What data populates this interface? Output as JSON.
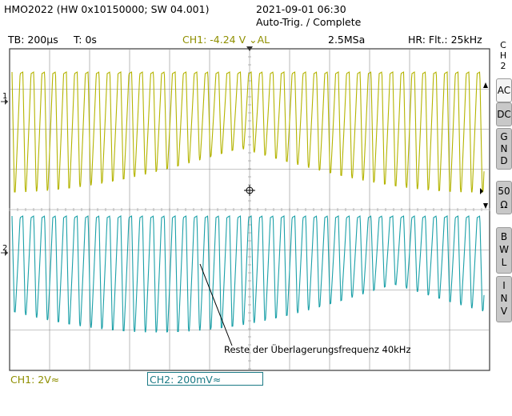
{
  "header": {
    "device": "HMO2022 (HW 0x10150000; SW 04.001)",
    "datetime": "2021-09-01 06:30",
    "trigger_status": "Auto-Trig. / Complete"
  },
  "status_bar": {
    "timebase": "TB: 200µs",
    "trigger_time": "T: 0s",
    "trigger_level": "CH1: -4.24 V ⌄AL",
    "sample_rate": "2.5MSa",
    "filter": "HR: Flt.: 25kHz"
  },
  "side_menu": {
    "channel": [
      "C",
      "H",
      "2"
    ],
    "buttons": [
      {
        "label": [
          "AC"
        ],
        "active": true
      },
      {
        "label": [
          "DC"
        ],
        "active": false
      },
      {
        "label": [
          "G",
          "N",
          "D"
        ],
        "active": false
      },
      {
        "label": [
          "50",
          "Ω"
        ],
        "active": false
      },
      {
        "label": [
          "B",
          "W",
          "L"
        ],
        "active": false
      },
      {
        "label": [
          "I",
          "N",
          "V"
        ],
        "active": false
      }
    ]
  },
  "markers": {
    "ch1": "1",
    "ch2": "2"
  },
  "annotation": "Reste der Überlagerungsfrequenz 40kHz",
  "footer": {
    "ch1_scale": "CH1: 2V≈",
    "ch2_scale": "CH2: 200mV≈"
  },
  "colors": {
    "ch1": "#b4b400",
    "ch2": "#1ba0a8",
    "grid": "#8c8c8c",
    "border": "#3a3a3a"
  }
}
